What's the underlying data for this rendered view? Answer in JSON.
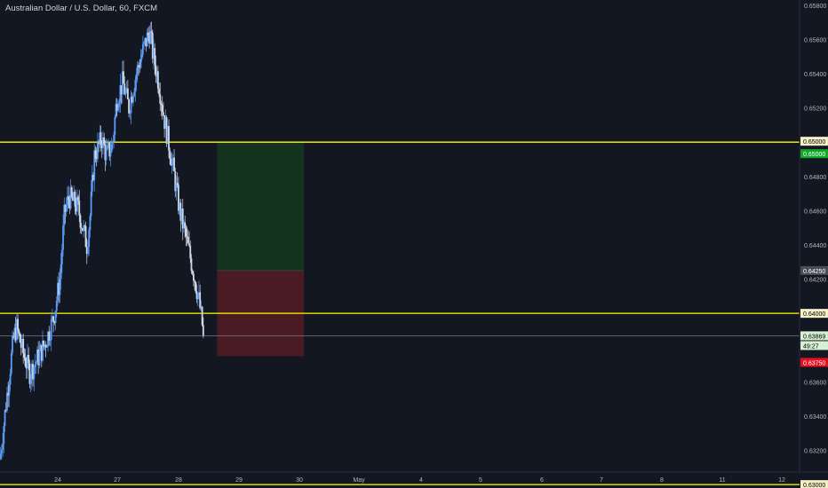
{
  "header": {
    "title": "Australian Dollar / U.S. Dollar, 60, FXCM"
  },
  "colors": {
    "background": "#131722",
    "candle_up": "#5b9cf6",
    "candle_down": "#cfd8e6",
    "level_line": "#ffff00",
    "target_zone": "#14331f",
    "stop_zone": "#4a1b23",
    "axis_text": "#b2b5be",
    "entry_tag": "#4a4d57",
    "target_tag": "#11a82a",
    "stop_tag": "#e5101e",
    "price_tag": "#d6f0d4"
  },
  "chart_data": {
    "type": "candlestick",
    "symbol": "Australian Dollar / U.S. Dollar",
    "interval": "60",
    "source": "FXCM",
    "y_axis": {
      "range": [
        0.6298,
        0.6583
      ],
      "ticks": [
        "0.65800",
        "0.65600",
        "0.65400",
        "0.65200",
        "0.64800",
        "0.64600",
        "0.64400",
        "0.64200",
        "0.63600",
        "0.63400",
        "0.63200"
      ]
    },
    "x_axis": {
      "range": [
        0,
        26.7
      ],
      "ticks": [
        {
          "label": "24",
          "x": 1
        },
        {
          "label": "27",
          "x": 2
        },
        {
          "label": "28",
          "x": 3
        },
        {
          "label": "29",
          "x": 4
        },
        {
          "label": "30",
          "x": 5
        },
        {
          "label": "May",
          "x": 6
        },
        {
          "label": "4",
          "x": 7
        },
        {
          "label": "5",
          "x": 8
        },
        {
          "label": "6",
          "x": 9
        },
        {
          "label": "7",
          "x": 10
        },
        {
          "label": "8",
          "x": 11
        },
        {
          "label": "11",
          "x": 12
        },
        {
          "label": "12",
          "x": 13
        }
      ]
    },
    "price_path": [
      [
        0,
        0.6315
      ],
      [
        0.25,
        0.6355
      ],
      [
        0.45,
        0.6385
      ],
      [
        0.55,
        0.6392
      ],
      [
        0.75,
        0.6378
      ],
      [
        1.0,
        0.6365
      ],
      [
        1.15,
        0.637
      ],
      [
        1.5,
        0.6382
      ],
      [
        1.8,
        0.6398
      ],
      [
        2.0,
        0.642
      ],
      [
        2.15,
        0.6458
      ],
      [
        2.3,
        0.6468
      ],
      [
        2.6,
        0.6462
      ],
      [
        2.9,
        0.644
      ],
      [
        3.0,
        0.6455
      ],
      [
        3.15,
        0.6492
      ],
      [
        3.4,
        0.6502
      ],
      [
        3.55,
        0.6492
      ],
      [
        3.75,
        0.6498
      ],
      [
        3.9,
        0.6525
      ],
      [
        4.1,
        0.6535
      ],
      [
        4.3,
        0.652
      ],
      [
        4.55,
        0.654
      ],
      [
        4.8,
        0.6555
      ],
      [
        5.0,
        0.6565
      ],
      [
        5.1,
        0.6552
      ],
      [
        5.3,
        0.6535
      ],
      [
        5.5,
        0.6512
      ],
      [
        5.75,
        0.6488
      ],
      [
        6.0,
        0.646
      ],
      [
        6.2,
        0.6445
      ],
      [
        6.45,
        0.6425
      ],
      [
        6.65,
        0.6407
      ],
      [
        6.8,
        0.63869
      ]
    ],
    "horizontal_levels": [
      0.65,
      0.64,
      0.63
    ],
    "position": {
      "x_range": [
        7.25,
        10.15
      ],
      "entry": 0.6425,
      "target": 0.65,
      "stop": 0.6375
    },
    "price_labels": {
      "level_top": "0.65000",
      "target": "0.65000",
      "entry": "0.64250",
      "level_mid": "0.64000",
      "current": "0.63869",
      "countdown": "49:27",
      "stop": "0.63750",
      "level_bottom": "0.63000"
    }
  }
}
